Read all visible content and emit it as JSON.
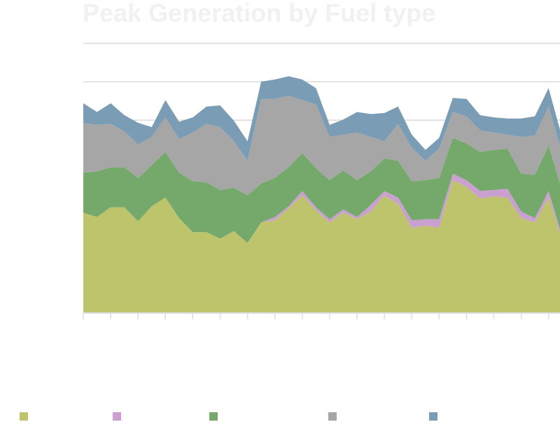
{
  "chart_data": {
    "type": "area",
    "stacked": true,
    "title": "Peak Generation by Fuel type",
    "xlabel": "",
    "ylabel": "",
    "grid": true,
    "legend_position": "bottom",
    "series": [
      {
        "color": "#bec46b",
        "values": [
          46.0,
          44.0,
          48.5,
          48.5,
          42.0,
          49.0,
          53.0,
          43.5,
          37.0,
          37.0,
          34.0,
          37.5,
          32.0,
          41.5,
          42.5,
          48.0,
          54.0,
          47.0,
          41.5,
          46.0,
          43.0,
          46.5,
          54.0,
          50.0,
          39.0,
          40.0,
          39.0,
          61.0,
          58.0,
          52.5,
          53.5,
          53.0,
          43.5,
          41.5,
          53.0,
          33.0
        ]
      },
      {
        "color": "#c9a0cf",
        "values": [
          0.0,
          0.0,
          0.0,
          0.0,
          0.0,
          0.0,
          0.0,
          0.0,
          0.0,
          0.0,
          0.0,
          0.0,
          0.0,
          0.0,
          1.5,
          1.0,
          2.0,
          1.5,
          1.5,
          1.5,
          1.0,
          3.0,
          2.0,
          3.0,
          3.5,
          3.0,
          4.0,
          3.0,
          3.0,
          3.5,
          3.0,
          4.0,
          3.0,
          2.0,
          3.0,
          2.0
        ]
      },
      {
        "color": "#74a96b",
        "values": [
          18.5,
          21.0,
          18.5,
          18.5,
          20.0,
          19.0,
          21.0,
          21.0,
          23.5,
          23.0,
          22.5,
          20.0,
          22.0,
          18.0,
          18.0,
          18.0,
          17.5,
          18.0,
          18.0,
          18.0,
          17.0,
          15.5,
          15.0,
          17.0,
          18.0,
          18.0,
          19.0,
          16.5,
          17.0,
          18.0,
          18.5,
          18.5,
          17.5,
          20.0,
          21.0,
          21.0
        ]
      },
      {
        "color": "#a6a6a6",
        "values": [
          23.0,
          21.5,
          20.0,
          16.5,
          15.5,
          13.0,
          16.0,
          15.5,
          22.5,
          27.0,
          29.0,
          21.5,
          16.0,
          39.0,
          36.5,
          33.0,
          24.5,
          29.5,
          20.0,
          16.5,
          22.0,
          16.0,
          8.0,
          17.0,
          15.5,
          9.0,
          13.5,
          12.0,
          12.5,
          10.0,
          8.0,
          6.5,
          17.0,
          18.0,
          18.0,
          17.0
        ]
      },
      {
        "color": "#7b9cb5",
        "values": [
          9.0,
          6.0,
          9.5,
          7.5,
          10.0,
          4.5,
          8.0,
          8.0,
          7.0,
          8.0,
          10.0,
          9.5,
          9.0,
          8.0,
          9.0,
          9.0,
          9.5,
          7.5,
          5.5,
          7.0,
          9.5,
          10.5,
          13.0,
          8.0,
          6.0,
          5.0,
          5.0,
          6.5,
          8.0,
          7.0,
          7.0,
          7.5,
          8.5,
          9.0,
          8.5,
          7.5
        ]
      }
    ]
  }
}
